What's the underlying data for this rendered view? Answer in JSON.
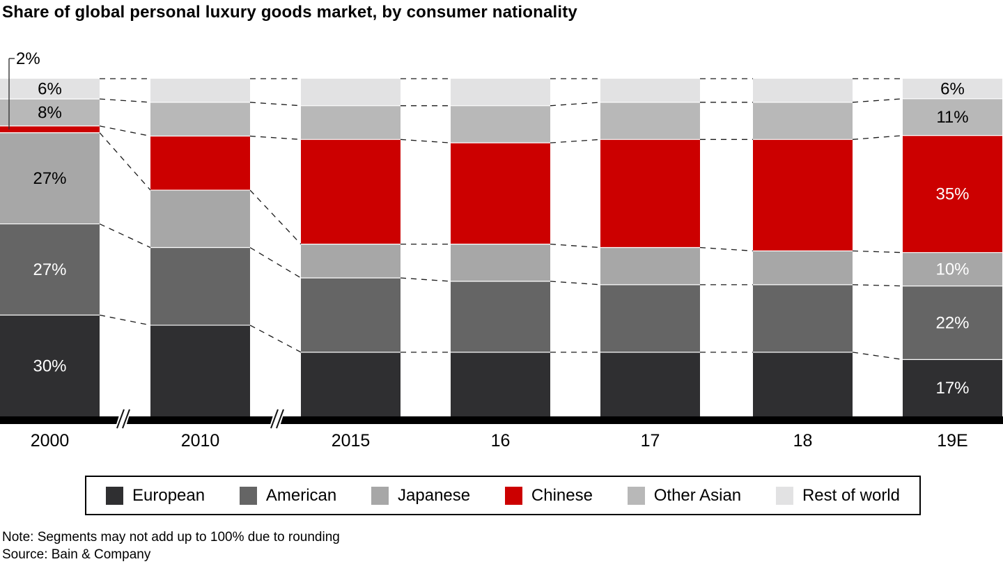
{
  "chart_data": {
    "type": "bar",
    "subtype": "stacked-vertical-100pct",
    "title": "Share of global personal luxury goods market, by consumer nationality",
    "categories": [
      "2000",
      "2010",
      "2015",
      "16",
      "17",
      "18",
      "19E"
    ],
    "unit": "%",
    "series": [
      {
        "name": "European",
        "color": "#2f2f31",
        "values": [
          30,
          27,
          19,
          19,
          19,
          19,
          17
        ]
      },
      {
        "name": "American",
        "color": "#656565",
        "values": [
          27,
          23,
          22,
          21,
          20,
          20,
          22
        ]
      },
      {
        "name": "Japanese",
        "color": "#a7a7a7",
        "values": [
          27,
          17,
          10,
          11,
          11,
          10,
          10
        ]
      },
      {
        "name": "Chinese",
        "color": "#cc0000",
        "values": [
          2,
          16,
          31,
          30,
          32,
          33,
          35
        ]
      },
      {
        "name": "Other Asian",
        "color": "#b8b8b8",
        "values": [
          8,
          10,
          10,
          11,
          11,
          11,
          11
        ]
      },
      {
        "name": "Rest of world",
        "color": "#e2e2e3",
        "values": [
          6,
          7,
          8,
          8,
          7,
          7,
          6
        ]
      }
    ],
    "labeled_categories": [
      "2000",
      "19E"
    ],
    "estimated_categories": [
      "2010",
      "2015",
      "16",
      "17",
      "18"
    ],
    "segment_label_colors": {
      "2000": {
        "European": "#ffffff",
        "American": "#ffffff",
        "Japanese": "#000000",
        "Chinese": "#000000",
        "Other Asian": "#000000",
        "Rest of world": "#000000"
      },
      "19E": {
        "European": "#ffffff",
        "American": "#ffffff",
        "Japanese": "#ffffff",
        "Chinese": "#ffffff",
        "Other Asian": "#000000",
        "Rest of world": "#000000"
      }
    },
    "callout": {
      "text": "2%",
      "category": "2000",
      "series": "Chinese"
    },
    "axis_breaks_between": [
      [
        "2000",
        "2010"
      ],
      [
        "2010",
        "2015"
      ]
    ],
    "dashed_connectors": true,
    "legend_position": "bottom",
    "ylim": [
      0,
      100
    ]
  },
  "notes": {
    "note": "Note: Segments may not add up to 100% due to rounding",
    "source": "Source: Bain & Company"
  }
}
